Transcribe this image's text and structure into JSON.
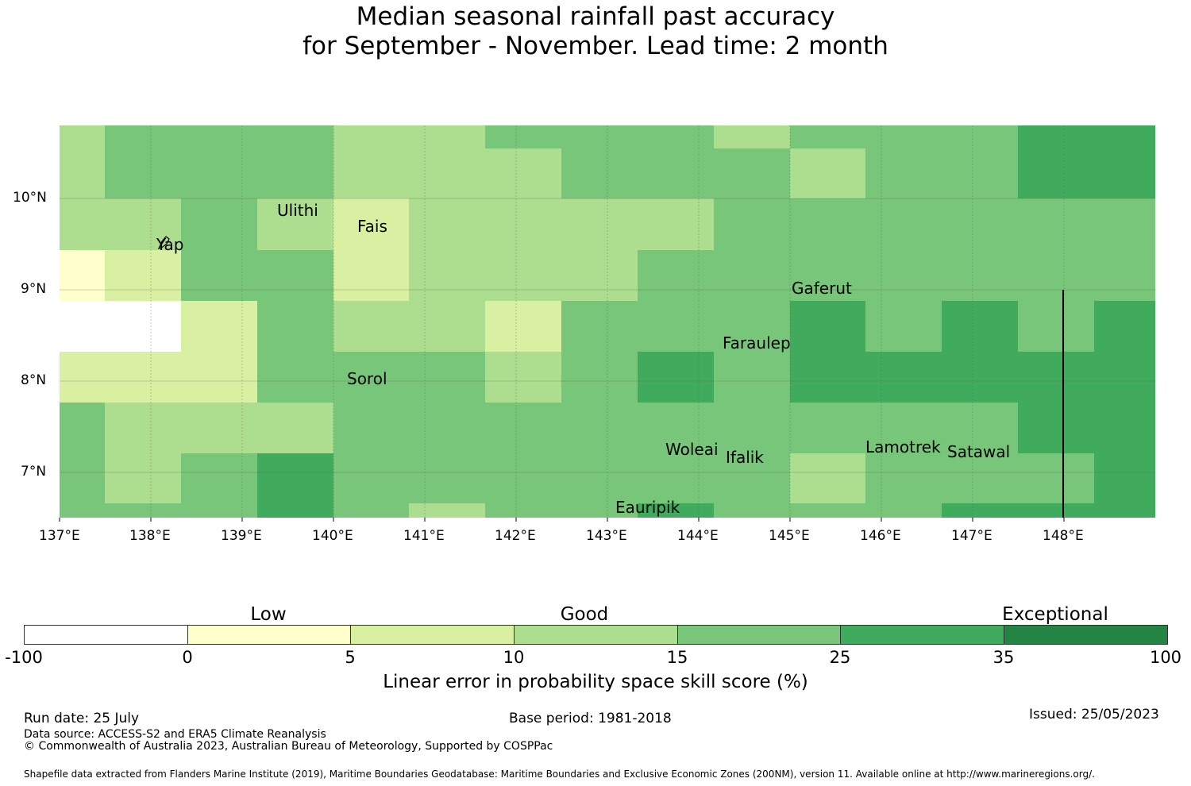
{
  "title_line1": "Median seasonal rainfall past accuracy",
  "title_line2": "for September - November. Lead time: 2 month",
  "map": {
    "lon_labels": [
      "137°E",
      "138°E",
      "139°E",
      "140°E",
      "141°E",
      "142°E",
      "143°E",
      "144°E",
      "145°E",
      "146°E",
      "147°E",
      "148°E"
    ],
    "lat_labels": [
      "10°N",
      "9°N",
      "8°N",
      "7°N"
    ],
    "islands": [
      "Ulithi",
      "Yap",
      "Fais",
      "Gaferut",
      "Faraulep",
      "Sorol",
      "Woleai",
      "Ifalik",
      "Lamotrek",
      "Satawal",
      "Eauripik"
    ],
    "colors": {
      "white": "#ffffff",
      "c0_5": "#ffffcc",
      "c5_10": "#d9f0a3",
      "c10_15": "#addd8e",
      "c15_25": "#78c679",
      "c25_35": "#41ab5d",
      "c35_100": "#238443"
    }
  },
  "colorbar": {
    "category_labels": [
      "Low",
      "Good",
      "Exceptional"
    ],
    "ticks": [
      "-100",
      "0",
      "5",
      "10",
      "15",
      "25",
      "35",
      "100"
    ],
    "colors": [
      "#ffffff",
      "#ffffcc",
      "#d9f0a3",
      "#addd8e",
      "#78c679",
      "#41ab5d",
      "#238443"
    ],
    "label": "Linear error in probability space skill score (%)"
  },
  "footer": {
    "run_date": "Run date: 25 July",
    "base_period": "Base period: 1981-2018",
    "issued": "Issued: 25/05/2023",
    "data_source": "Data source: ACCESS-S2 and ERA5 Climate Reanalysis",
    "copyright": "© Commonwealth of Australia 2023, Australian Bureau of Meteorology, Supported by COSPPac",
    "shapefile": "Shapefile data extracted from Flanders Marine Institute (2019), Maritime Boundaries Geodatabase: Maritime Boundaries and Exclusive Economic Zones (200NM), version 11. Available online at http://www.marineregions.org/."
  }
}
